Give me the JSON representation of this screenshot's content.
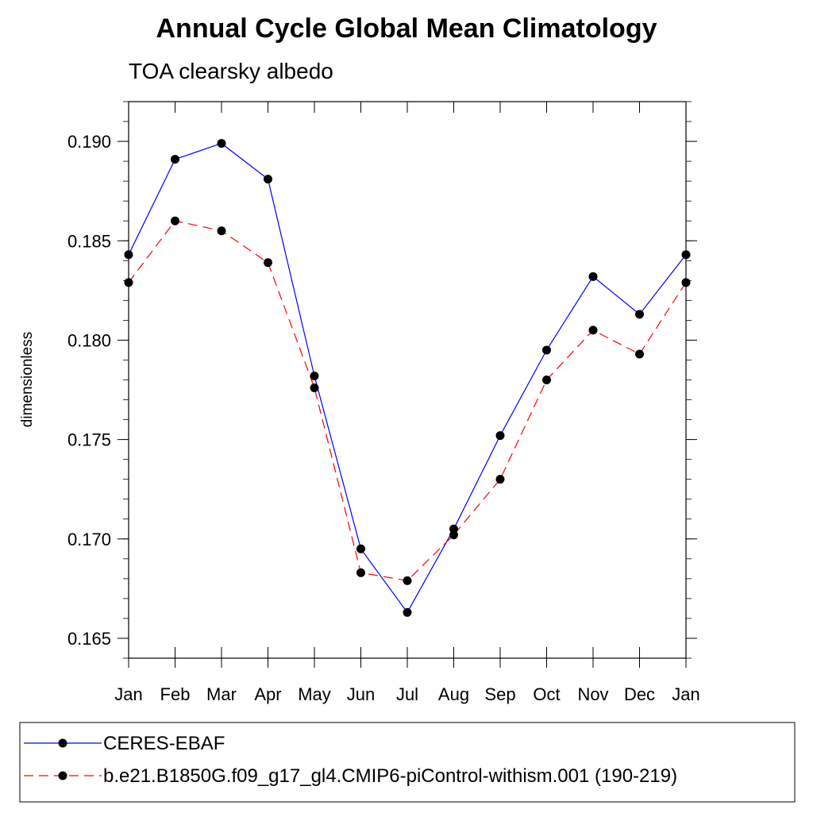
{
  "chart_data": {
    "type": "line",
    "title": "Annual Cycle Global Mean Climatology",
    "subtitle": "TOA clearsky albedo",
    "xlabel": "",
    "ylabel": "dimensionless",
    "categories": [
      "Jan",
      "Feb",
      "Mar",
      "Apr",
      "May",
      "Jun",
      "Jul",
      "Aug",
      "Sep",
      "Oct",
      "Nov",
      "Dec",
      "Jan"
    ],
    "ylim": [
      0.164,
      0.192
    ],
    "yticks": [
      "0.165",
      "0.170",
      "0.175",
      "0.180",
      "0.185",
      "0.190"
    ],
    "ytick_values": [
      0.165,
      0.17,
      0.175,
      0.18,
      0.185,
      0.19
    ],
    "grid": false,
    "legend_position": "bottom",
    "series": [
      {
        "name": "CERES-EBAF",
        "color": "#0000ff",
        "line_style": "solid",
        "marker": "filled-circle",
        "values": [
          0.1843,
          0.1891,
          0.1899,
          0.1881,
          0.1782,
          0.1695,
          0.1663,
          0.1705,
          0.1752,
          0.1795,
          0.1832,
          0.1813,
          0.1843
        ]
      },
      {
        "name": "b.e21.B1850G.f09_g17_gl4.CMIP6-piControl-withism.001 (190-219)",
        "color": "#ff0000",
        "line_style": "dashed",
        "marker": "filled-circle",
        "values": [
          0.1829,
          0.186,
          0.1855,
          0.1839,
          0.1776,
          0.1683,
          0.1679,
          0.1702,
          0.173,
          0.178,
          0.1805,
          0.1793,
          0.1829
        ]
      }
    ]
  }
}
